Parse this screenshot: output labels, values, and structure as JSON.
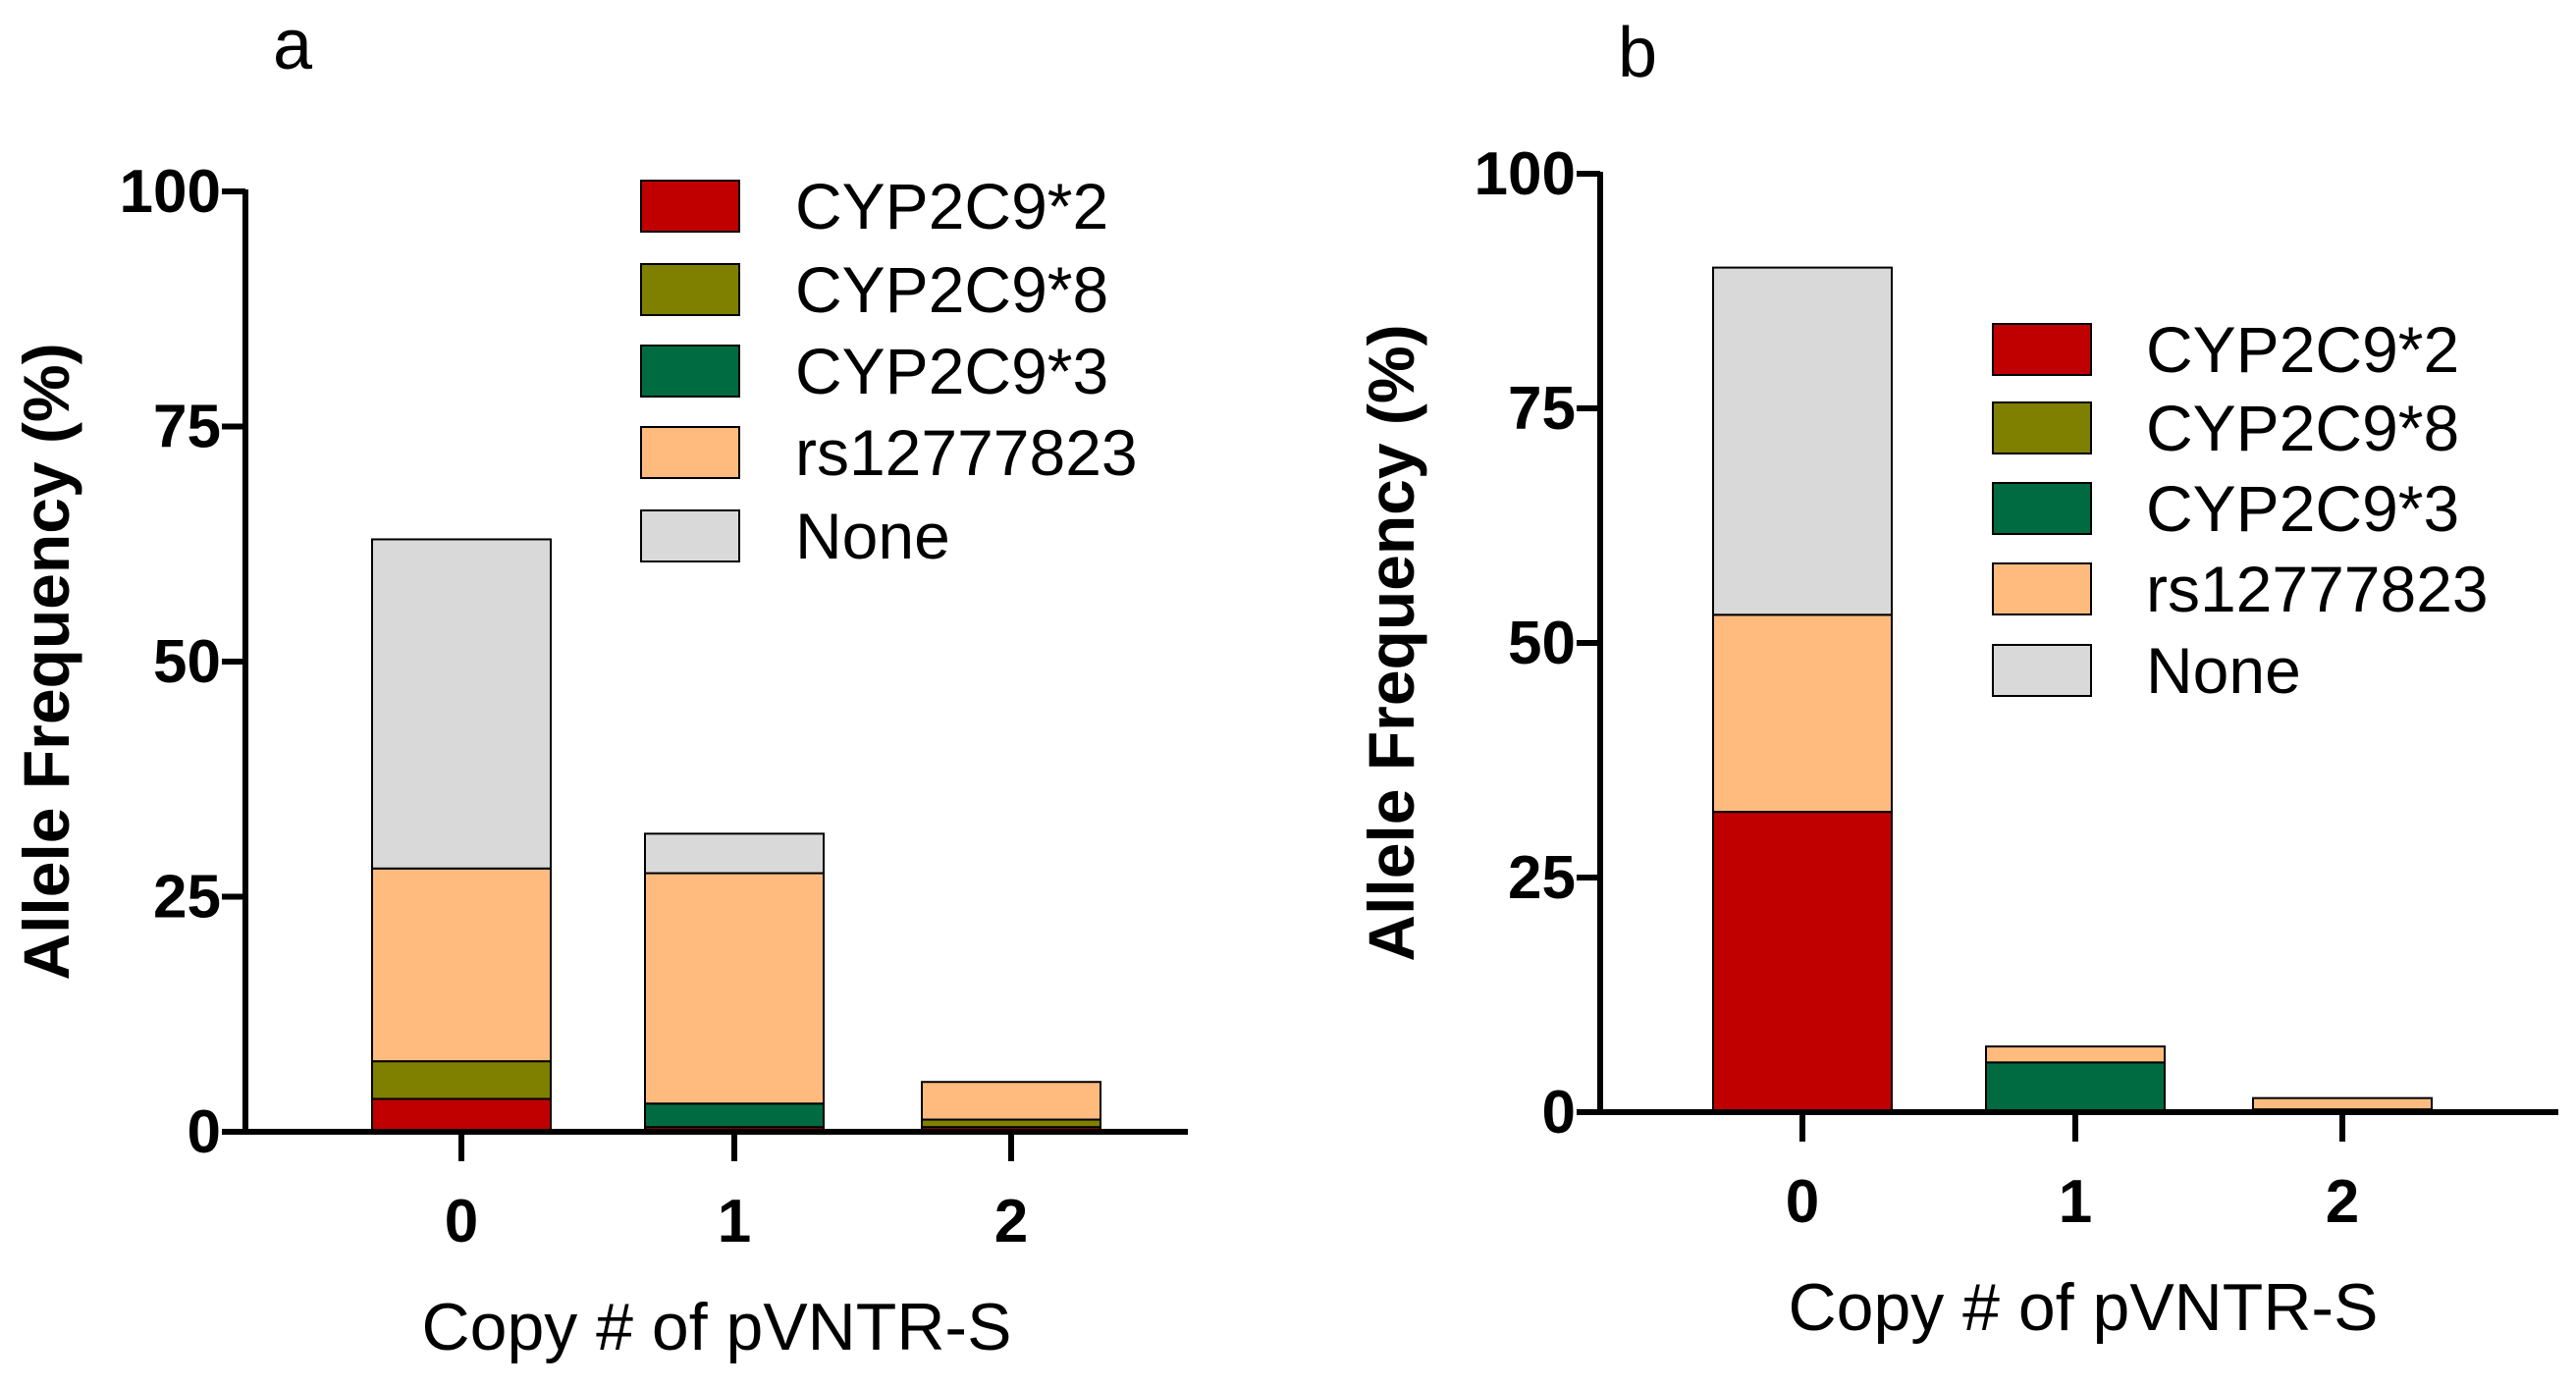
{
  "chart_data": [
    {
      "panel": "a",
      "type": "bar",
      "stacked": true,
      "categories": [
        "0",
        "1",
        "2"
      ],
      "series": [
        {
          "name": "CYP2C9*2",
          "color": "#C00000",
          "values": [
            3.5,
            0.5,
            0.5
          ]
        },
        {
          "name": "CYP2C9*8",
          "color": "#808000",
          "values": [
            4,
            0,
            0.8
          ]
        },
        {
          "name": "CYP2C9*3",
          "color": "#006B40",
          "values": [
            0,
            2.5,
            0
          ]
        },
        {
          "name": "rs12777823",
          "color": "#FFBB7E",
          "values": [
            20.5,
            24.5,
            4
          ]
        },
        {
          "name": "None",
          "color": "#D9D9D9",
          "values": [
            35,
            4.2,
            0
          ]
        }
      ],
      "xlabel": "Copy # of pVNTR-S",
      "ylabel": "Allele Frequency (%)",
      "ylim": [
        0,
        100
      ],
      "yticks": [
        "0",
        "25",
        "50",
        "75",
        "100"
      ],
      "legend_position": "top-right"
    },
    {
      "panel": "b",
      "type": "bar",
      "stacked": true,
      "categories": [
        "0",
        "1",
        "2"
      ],
      "series": [
        {
          "name": "CYP2C9*2",
          "color": "#C00000",
          "values": [
            32,
            0,
            0.3
          ]
        },
        {
          "name": "CYP2C9*8",
          "color": "#808000",
          "values": [
            0,
            0,
            0
          ]
        },
        {
          "name": "CYP2C9*3",
          "color": "#006B40",
          "values": [
            0,
            5.3,
            0
          ]
        },
        {
          "name": "rs12777823",
          "color": "#FFBB7E",
          "values": [
            21,
            1.7,
            1.2
          ]
        },
        {
          "name": "None",
          "color": "#D9D9D9",
          "values": [
            37,
            0,
            0
          ]
        }
      ],
      "xlabel": "Copy # of pVNTR-S",
      "ylabel": "Allele Frequency (%)",
      "ylim": [
        0,
        100
      ],
      "yticks": [
        "0",
        "25",
        "50",
        "75",
        "100"
      ],
      "legend_position": "top-right"
    }
  ]
}
